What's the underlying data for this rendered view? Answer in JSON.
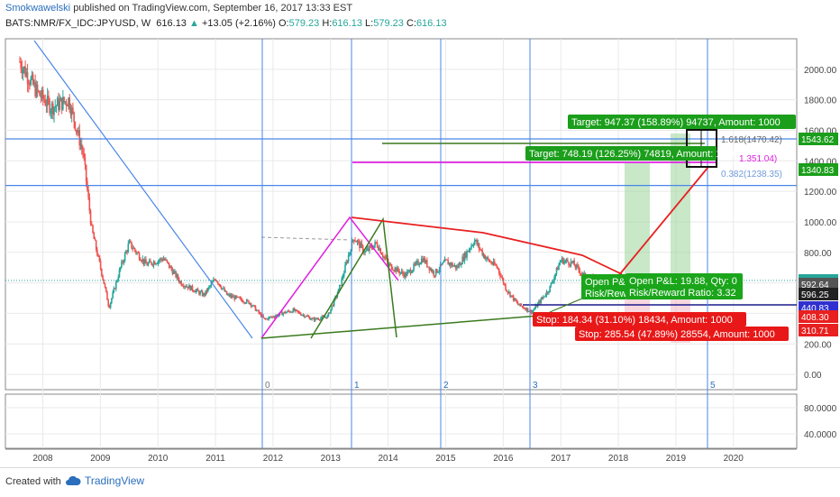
{
  "header": {
    "author": "Smokwawelski",
    "published": "published on TradingView.com, September 16, 2017 13:33 EST",
    "symbol": "BATS:NMR/FX_IDC:JPYUSD, W",
    "last": "616.13",
    "change_arrow": "▲",
    "change": "+13.05 (+2.16%)",
    "o_label": "O:",
    "o_value": "579.23",
    "h_label": "H:",
    "h_value": "616.13",
    "l_label": "L:",
    "l_value": "579.23",
    "c_label": "C:",
    "c_value": "616.13"
  },
  "footer": {
    "created_with": "Created with",
    "brand": "TradingView"
  },
  "colors": {
    "up": "#26a69a",
    "down": "#ef5350",
    "grid": "#e9e9e9",
    "blue_line": "#4a86e8",
    "magenta": "#e020e0",
    "dark_green": "#3a7a1e",
    "red": "#e82020",
    "target_green": "#1b9e1b"
  },
  "chart_data": {
    "type": "candlestick",
    "x": [
      "2008",
      "2009",
      "2010",
      "2011",
      "2012",
      "2013",
      "2014",
      "2015",
      "2016",
      "2017",
      "2018",
      "2019",
      "2020"
    ],
    "ylim": [
      -100,
      2200
    ],
    "y_ticks": [
      "2000.00",
      "1800.00",
      "1600.00",
      "1400.00",
      "1200.00",
      "1000.00",
      "800.00",
      "600.00",
      "400.00",
      "200.00",
      "0.00"
    ],
    "price_series": [
      {
        "t": 2007.6,
        "v": 2050
      },
      {
        "t": 2007.9,
        "v": 1850
      },
      {
        "t": 2008.15,
        "v": 1750
      },
      {
        "t": 2008.45,
        "v": 1800
      },
      {
        "t": 2008.7,
        "v": 1450
      },
      {
        "t": 2008.85,
        "v": 950
      },
      {
        "t": 2009.05,
        "v": 620
      },
      {
        "t": 2009.15,
        "v": 440
      },
      {
        "t": 2009.35,
        "v": 700
      },
      {
        "t": 2009.5,
        "v": 860
      },
      {
        "t": 2009.8,
        "v": 720
      },
      {
        "t": 2010.1,
        "v": 760
      },
      {
        "t": 2010.4,
        "v": 600
      },
      {
        "t": 2010.8,
        "v": 520
      },
      {
        "t": 2011.0,
        "v": 630
      },
      {
        "t": 2011.2,
        "v": 520
      },
      {
        "t": 2011.6,
        "v": 470
      },
      {
        "t": 2011.85,
        "v": 360
      },
      {
        "t": 2012.15,
        "v": 400
      },
      {
        "t": 2012.35,
        "v": 420
      },
      {
        "t": 2012.7,
        "v": 360
      },
      {
        "t": 2012.95,
        "v": 380
      },
      {
        "t": 2013.15,
        "v": 560
      },
      {
        "t": 2013.4,
        "v": 900
      },
      {
        "t": 2013.6,
        "v": 800
      },
      {
        "t": 2013.8,
        "v": 860
      },
      {
        "t": 2014.0,
        "v": 720
      },
      {
        "t": 2014.3,
        "v": 650
      },
      {
        "t": 2014.6,
        "v": 760
      },
      {
        "t": 2014.8,
        "v": 660
      },
      {
        "t": 2015.0,
        "v": 740
      },
      {
        "t": 2015.2,
        "v": 700
      },
      {
        "t": 2015.5,
        "v": 880
      },
      {
        "t": 2015.7,
        "v": 760
      },
      {
        "t": 2015.9,
        "v": 700
      },
      {
        "t": 2016.05,
        "v": 560
      },
      {
        "t": 2016.25,
        "v": 460
      },
      {
        "t": 2016.5,
        "v": 410
      },
      {
        "t": 2016.8,
        "v": 560
      },
      {
        "t": 2017.0,
        "v": 750
      },
      {
        "t": 2017.2,
        "v": 730
      },
      {
        "t": 2017.4,
        "v": 650
      },
      {
        "t": 2017.6,
        "v": 616
      }
    ],
    "price_axis_labels": [
      {
        "text": "1543.62",
        "v": 1543.62,
        "color": "#1b9e1b"
      },
      {
        "text": "1340.83",
        "v": 1340.83,
        "color": "#1b9e1b"
      },
      {
        "text": "616.13",
        "v": 616.13,
        "color": "#26a69a"
      },
      {
        "text": "592.64",
        "v": 592.64,
        "color": "#555555"
      },
      {
        "text": "596.25",
        "v": 525,
        "color": "#222222"
      },
      {
        "text": "440.83",
        "v": 440.83,
        "color": "#3030d0"
      },
      {
        "text": "408.30",
        "v": 380,
        "color": "#e82020"
      },
      {
        "text": "310.71",
        "v": 290,
        "color": "#e82020"
      }
    ],
    "fib_labels": [
      {
        "text": "1.618(1470.42)",
        "v": 1470.42
      },
      {
        "text": "1.351.04)",
        "v": 1351.04
      },
      {
        "text": "0.382(1238.35)",
        "v": 1238.35
      }
    ],
    "wave_labels": [
      "0",
      "1",
      "2",
      "3",
      "5"
    ],
    "targets": [
      "Target: 947.37 (158.89%) 94737, Amount: 1000",
      "Target: 748.19 (126.25%) 74819, Amount: 1000"
    ],
    "stops": [
      "Stop: 184.34 (31.10%) 18434, Amount: 1000",
      "Stop: 285.54 (47.89%) 28554, Amount: 1000"
    ],
    "open_pl": [
      {
        "line1": "Open P&L:",
        "line2": "Risk/Reward"
      },
      {
        "line1": "Open P&L: 19.88, Qty: 0",
        "line2": "Risk/Reward Ratio: 3.32"
      }
    ],
    "indicator": {
      "y_ticks": [
        "80.0000",
        "40.0000"
      ]
    }
  }
}
